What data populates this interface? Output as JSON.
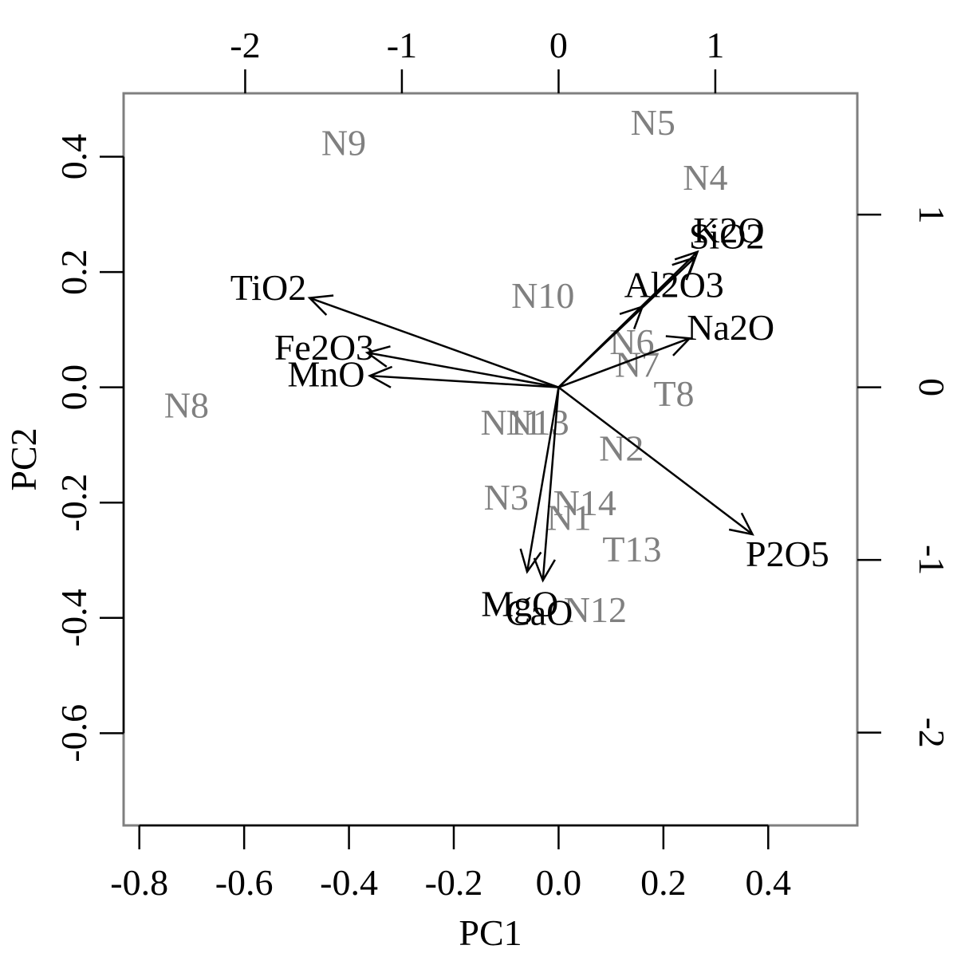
{
  "chart_data": {
    "type": "scatter",
    "subtype": "biplot",
    "xlabel": "PC1",
    "ylabel": "PC2",
    "xlim": [
      -0.83,
      0.57
    ],
    "ylim": [
      -0.76,
      0.51
    ],
    "x_ticks": [
      "-0.8",
      "-0.6",
      "-0.4",
      "-0.2",
      "0.0",
      "0.2",
      "0.4"
    ],
    "y_ticks": [
      "-0.6",
      "-0.4",
      "-0.2",
      "0.0",
      "0.2",
      "0.4"
    ],
    "top_ticks": [
      "-2",
      "-1",
      "0",
      "1"
    ],
    "right_ticks": [
      "-2",
      "-1",
      "0",
      "1"
    ],
    "grid": false,
    "observation_color": "#808080",
    "variable_color": "#000000",
    "observations": [
      {
        "label": "N9",
        "x": -0.41,
        "y": 0.425
      },
      {
        "label": "N5",
        "x": 0.18,
        "y": 0.46
      },
      {
        "label": "N4",
        "x": 0.28,
        "y": 0.365
      },
      {
        "label": "N10",
        "x": -0.03,
        "y": 0.16
      },
      {
        "label": "N6",
        "x": 0.14,
        "y": 0.08
      },
      {
        "label": "N7",
        "x": 0.15,
        "y": 0.04
      },
      {
        "label": "T8",
        "x": 0.22,
        "y": -0.01
      },
      {
        "label": "N8",
        "x": -0.71,
        "y": -0.03
      },
      {
        "label": "N11",
        "x": -0.09,
        "y": -0.06
      },
      {
        "label": "N13",
        "x": -0.04,
        "y": -0.06
      },
      {
        "label": "N2",
        "x": 0.12,
        "y": -0.105
      },
      {
        "label": "N3",
        "x": -0.1,
        "y": -0.19
      },
      {
        "label": "N14",
        "x": 0.05,
        "y": -0.2
      },
      {
        "label": "N1",
        "x": 0.02,
        "y": -0.225
      },
      {
        "label": "T13",
        "x": 0.14,
        "y": -0.28
      },
      {
        "label": "N12",
        "x": 0.07,
        "y": -0.385
      }
    ],
    "variables": [
      {
        "label": "TiO2",
        "x": -0.475,
        "y": 0.155
      },
      {
        "label": "Fe2O3",
        "x": -0.365,
        "y": 0.06
      },
      {
        "label": "MnO",
        "x": -0.36,
        "y": 0.02
      },
      {
        "label": "K2O",
        "x": 0.265,
        "y": 0.235
      },
      {
        "label": "SiO2",
        "x": 0.26,
        "y": 0.225
      },
      {
        "label": "Al2O3",
        "x": 0.16,
        "y": 0.14
      },
      {
        "label": "Na2O",
        "x": 0.25,
        "y": 0.085
      },
      {
        "label": "P2O5",
        "x": 0.37,
        "y": -0.255
      },
      {
        "label": "MgO",
        "x": -0.06,
        "y": -0.32
      },
      {
        "label": "CaO",
        "x": -0.03,
        "y": -0.335
      }
    ]
  }
}
